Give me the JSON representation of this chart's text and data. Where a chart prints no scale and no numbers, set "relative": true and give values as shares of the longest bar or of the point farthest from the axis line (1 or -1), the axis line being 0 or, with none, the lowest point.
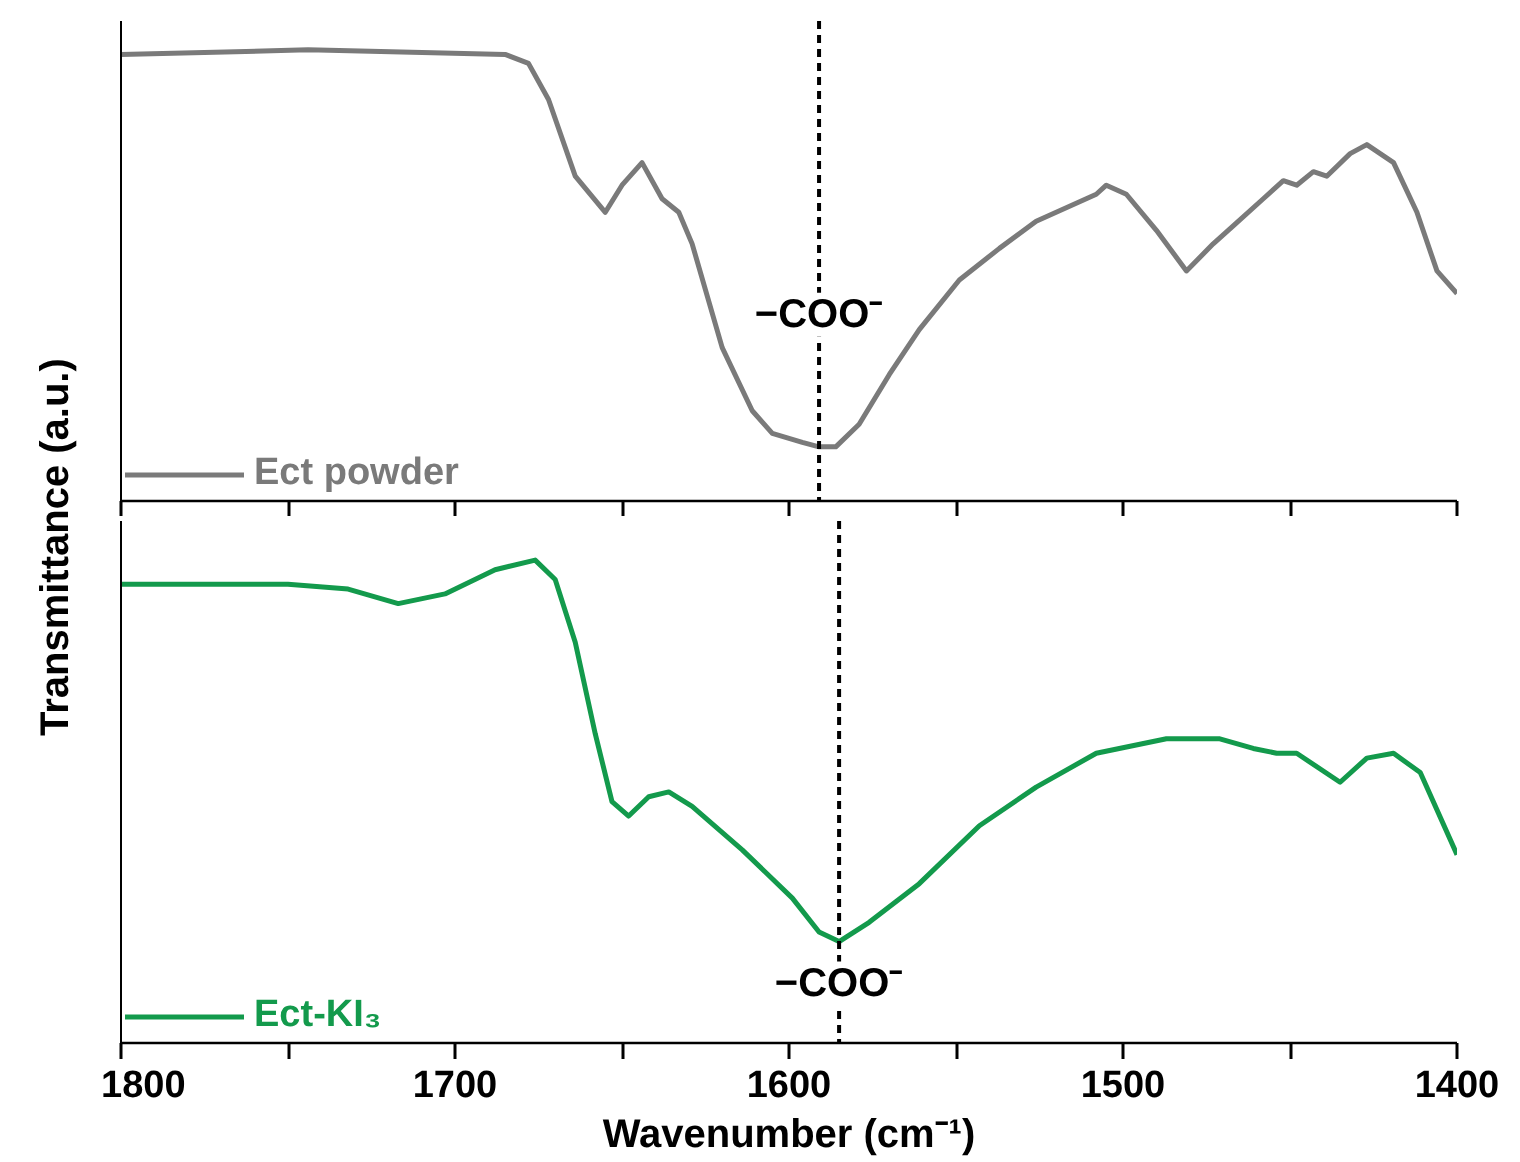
{
  "chart_data": [
    {
      "type": "line",
      "relative": true,
      "ylabel": "Transmittance (a.u.)",
      "xlim": [
        1800,
        1400
      ],
      "tick_labels": false,
      "legend": "bottom left",
      "xticks": [
        1800,
        {
          "value": 1750,
          "label": null
        },
        1700,
        {
          "value": 1650,
          "label": null
        },
        1600,
        {
          "value": 1550,
          "label": null
        },
        1500,
        {
          "value": 1450,
          "label": null
        },
        1400
      ],
      "series": [
        {
          "name": "Ect powder",
          "color": "#7a7a7a",
          "x": [
            1800,
            1744,
            1685,
            1678,
            1672,
            1664,
            1655,
            1650,
            1644,
            1638,
            1633,
            1629,
            1620,
            1611,
            1605,
            1596,
            1591,
            1586,
            1579,
            1570,
            1561,
            1549,
            1537,
            1526,
            1508,
            1505,
            1499,
            1490,
            1481,
            1473,
            1467,
            1458,
            1452,
            1448,
            1443,
            1439,
            1432,
            1427,
            1419,
            1412,
            1406,
            1400
          ],
          "values": [
            0.99,
            1.0,
            0.99,
            0.97,
            0.89,
            0.72,
            0.64,
            0.7,
            0.75,
            0.67,
            0.64,
            0.57,
            0.34,
            0.2,
            0.15,
            0.13,
            0.12,
            0.12,
            0.17,
            0.28,
            0.38,
            0.49,
            0.56,
            0.62,
            0.68,
            0.7,
            0.68,
            0.6,
            0.51,
            0.57,
            0.61,
            0.67,
            0.71,
            0.7,
            0.73,
            0.72,
            0.77,
            0.79,
            0.75,
            0.64,
            0.51,
            0.46
          ]
        }
      ],
      "ref_lines": [
        {
          "axis": "x",
          "value": 1591,
          "color": "#000000",
          "line_style": "dashed"
        }
      ],
      "annotations": [
        {
          "text": "−COO⁻",
          "x": 1591,
          "y": 0.12
        }
      ]
    },
    {
      "type": "line",
      "relative": true,
      "xlabel": "Wavenumber (cm⁻¹)",
      "xlim": [
        1800,
        1400
      ],
      "legend": "bottom left",
      "xticks": [
        1800,
        {
          "value": 1750,
          "label": null
        },
        1700,
        {
          "value": 1650,
          "label": null
        },
        1600,
        {
          "value": 1550,
          "label": null
        },
        1500,
        {
          "value": 1450,
          "label": null
        },
        1400
      ],
      "series": [
        {
          "name": "Ect-KI₃",
          "color": "#139a4c",
          "x": [
            1800,
            1773,
            1750,
            1732,
            1717,
            1703,
            1688,
            1676,
            1670,
            1664,
            1658,
            1653,
            1648,
            1642,
            1636,
            1629,
            1614,
            1599,
            1591,
            1585,
            1576,
            1561,
            1543,
            1526,
            1508,
            1487,
            1471,
            1461,
            1454,
            1448,
            1435,
            1427,
            1419,
            1411,
            1400
          ],
          "values": [
            0.95,
            0.95,
            0.95,
            0.94,
            0.91,
            0.93,
            0.98,
            1.0,
            0.96,
            0.83,
            0.64,
            0.5,
            0.47,
            0.51,
            0.52,
            0.49,
            0.4,
            0.3,
            0.23,
            0.21,
            0.25,
            0.33,
            0.45,
            0.53,
            0.6,
            0.63,
            0.63,
            0.61,
            0.6,
            0.6,
            0.54,
            0.59,
            0.6,
            0.56,
            0.39
          ]
        }
      ],
      "ref_lines": [
        {
          "axis": "x",
          "value": 1585,
          "color": "#000000",
          "line_style": "dashed"
        }
      ],
      "annotations": [
        {
          "text": "−COO⁻",
          "x": 1585,
          "y": 0.21
        }
      ]
    }
  ]
}
